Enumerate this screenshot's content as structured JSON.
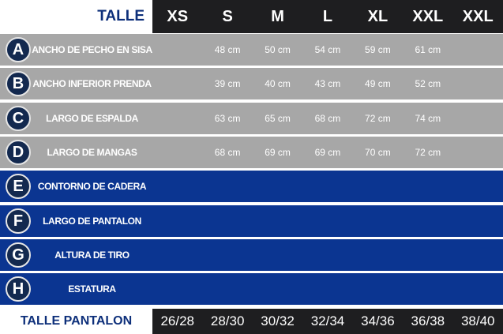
{
  "header": {
    "label": "TALLE",
    "sizes": [
      "XS",
      "S",
      "M",
      "L",
      "XL",
      "XXL",
      "XXL"
    ]
  },
  "measurements": [
    {
      "letter": "A",
      "label": "ANCHO DE PECHO EN SISA",
      "values": [
        "",
        "48 cm",
        "50 cm",
        "54 cm",
        "59 cm",
        "61 cm",
        ""
      ]
    },
    {
      "letter": "B",
      "label": "ANCHO INFERIOR PRENDA",
      "values": [
        "",
        "39 cm",
        "40 cm",
        "43 cm",
        "49 cm",
        "52  cm",
        ""
      ]
    },
    {
      "letter": "C",
      "label": "LARGO DE ESPALDA",
      "values": [
        "",
        "63 cm",
        "65 cm",
        "68 cm",
        "72 cm",
        "74 cm",
        ""
      ]
    },
    {
      "letter": "D",
      "label": "LARGO DE MANGAS",
      "values": [
        "",
        "68 cm",
        "69 cm",
        "69 cm",
        "70 cm",
        "72 cm",
        ""
      ]
    },
    {
      "letter": "E",
      "label": "CONTORNO DE CADERA",
      "values": [
        "",
        "",
        "",
        "",
        "",
        "",
        ""
      ]
    },
    {
      "letter": "F",
      "label": "LARGO DE PANTALON",
      "values": [
        "",
        "",
        "",
        "",
        "",
        "",
        ""
      ]
    },
    {
      "letter": "G",
      "label": "ALTURA DE TIRO",
      "values": [
        "",
        "",
        "",
        "",
        "",
        "",
        ""
      ]
    },
    {
      "letter": "H",
      "label": "ESTATURA",
      "values": [
        "",
        "",
        "",
        "",
        "",
        "",
        ""
      ]
    }
  ],
  "footer": {
    "label": "TALLE PANTALON",
    "sizes": [
      "26/28",
      "28/30",
      "30/32",
      "32/34",
      "34/36",
      "36/38",
      "38/40"
    ]
  },
  "colors": {
    "gray_rows": "#a7a7a7",
    "blue_rows": "#0b3591",
    "header_bar": "#1e1e20",
    "badge": "#13294f",
    "label_text": "#0d2f7a"
  }
}
